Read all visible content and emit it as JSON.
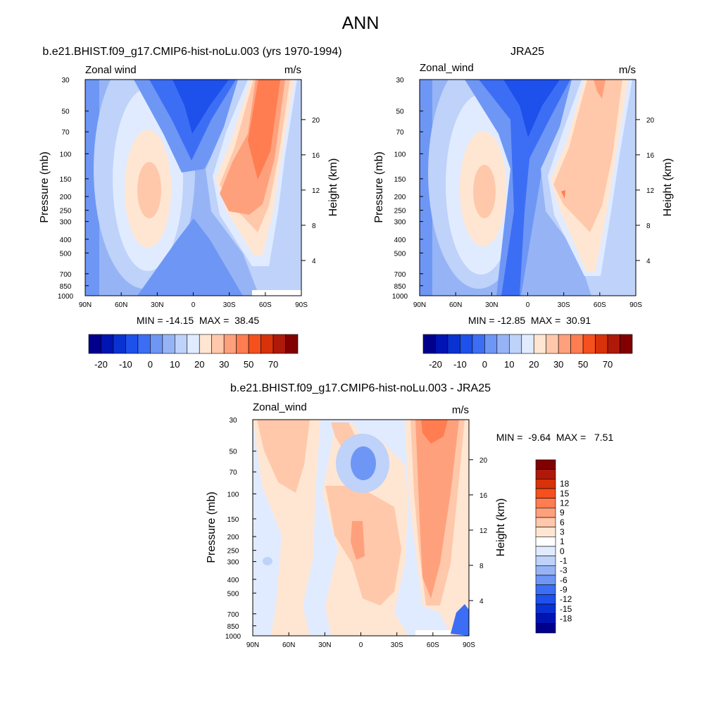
{
  "figure": {
    "title": "ANN"
  },
  "colors": {
    "scale_abs": [
      "#00008c",
      "#0014b4",
      "#0a32d2",
      "#1e50eb",
      "#3c6ef5",
      "#6e96f5",
      "#96b4f5",
      "#bed2fa",
      "#e1ebff",
      "#ffe6d2",
      "#ffc8aa",
      "#ffa07d",
      "#ff7d50",
      "#f5501e",
      "#d7320a",
      "#af190a",
      "#820000"
    ],
    "scale_diff": [
      "#00008c",
      "#0014b4",
      "#0a32d2",
      "#1e50eb",
      "#3c6ef5",
      "#6e96f5",
      "#96b4f5",
      "#bed2fa",
      "#e1ebff",
      "#ffffff",
      "#ffe6d2",
      "#ffc8aa",
      "#ffa07d",
      "#ff7d50",
      "#f5501e",
      "#d7320a",
      "#af190a",
      "#820000"
    ]
  },
  "chart_data": [
    {
      "type": "heatmap",
      "title": "b.e21.BHIST.f09_g17.CMIP6-hist-noLu.003 (yrs 1970-1994)",
      "variable_label": "Zonal wind",
      "units": "m/s",
      "xlabel": "",
      "ylabel": "Pressure (mb)",
      "y2label": "Height (km)",
      "x_ticks": [
        "90N",
        "60N",
        "30N",
        "0",
        "30S",
        "60S",
        "90S"
      ],
      "xlim": [
        90,
        -90
      ],
      "y_ticks": [
        30,
        50,
        70,
        100,
        150,
        200,
        250,
        300,
        400,
        500,
        700,
        850,
        1000
      ],
      "ylim": [
        1000,
        30
      ],
      "y_scale": "log",
      "y2_ticks": [
        4,
        8,
        12,
        16,
        20
      ],
      "stats": "MIN = -14.15  MAX =  38.45",
      "min": -14.15,
      "max": 38.45,
      "colorbar_labels": [
        "-20",
        "-10",
        "0",
        "10",
        "20",
        "30",
        "50",
        "70"
      ],
      "colorbar_position": "bottom"
    },
    {
      "type": "heatmap",
      "title": "JRA25",
      "variable_label": "Zonal_wind",
      "units": "m/s",
      "xlabel": "",
      "ylabel": "Pressure (mb)",
      "y2label": "Height (km)",
      "x_ticks": [
        "90N",
        "60N",
        "30N",
        "0",
        "30S",
        "60S",
        "90S"
      ],
      "xlim": [
        90,
        -90
      ],
      "y_ticks": [
        30,
        50,
        70,
        100,
        150,
        200,
        250,
        300,
        400,
        500,
        700,
        850,
        1000
      ],
      "ylim": [
        1000,
        30
      ],
      "y_scale": "log",
      "y2_ticks": [
        4,
        8,
        12,
        16,
        20
      ],
      "stats": "MIN = -12.85  MAX =  30.91",
      "min": -12.85,
      "max": 30.91,
      "colorbar_labels": [
        "-20",
        "-10",
        "0",
        "10",
        "20",
        "30",
        "50",
        "70"
      ],
      "colorbar_position": "bottom"
    },
    {
      "type": "heatmap",
      "title": "b.e21.BHIST.f09_g17.CMIP6-hist-noLu.003 - JRA25",
      "variable_label": "Zonal_wind",
      "units": "m/s",
      "xlabel": "",
      "ylabel": "Pressure (mb)",
      "y2label": "Height (km)",
      "x_ticks": [
        "90N",
        "60N",
        "30N",
        "0",
        "30S",
        "60S",
        "90S"
      ],
      "xlim": [
        90,
        -90
      ],
      "y_ticks": [
        30,
        50,
        70,
        100,
        150,
        200,
        250,
        300,
        400,
        500,
        700,
        850,
        1000
      ],
      "ylim": [
        1000,
        30
      ],
      "y_scale": "log",
      "y2_ticks": [
        4,
        8,
        12,
        16,
        20
      ],
      "stats": "MIN =  -9.64  MAX =   7.51",
      "min": -9.64,
      "max": 7.51,
      "colorbar_labels": [
        "18",
        "15",
        "12",
        "9",
        "6",
        "3",
        "1",
        "0",
        "-1",
        "-3",
        "-6",
        "-9",
        "-12",
        "-15",
        "-18"
      ],
      "colorbar_position": "right"
    }
  ]
}
